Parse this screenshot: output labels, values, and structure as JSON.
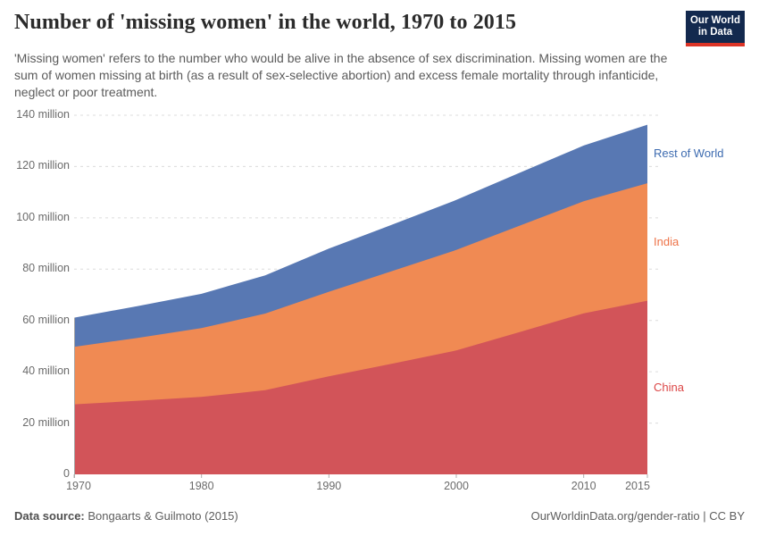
{
  "header": {
    "title": "Number of 'missing women' in the world, 1970 to 2015",
    "subtitle": "'Missing women' refers to the number who would be alive in the absence of sex discrimination. Missing women are the sum of women missing at birth (as a result of sex-selective abortion) and excess female mortality through infanticide, neglect or poor treatment.",
    "logo": {
      "line1": "Our World",
      "line2": "in Data",
      "bg_color": "#13294e",
      "bar_color": "#dc3426"
    }
  },
  "chart_data": {
    "type": "area",
    "stacked": true,
    "title": "Number of 'missing women' in the world, 1970 to 2015",
    "xlabel": "",
    "ylabel": "",
    "unit": "million",
    "grid": "dashed-horizontal",
    "legend_position": "labels-at-right-edge",
    "xlim": [
      1970,
      2015
    ],
    "ylim": [
      0,
      140
    ],
    "x": [
      1970,
      1975,
      1980,
      1985,
      1990,
      1995,
      2000,
      2005,
      2010,
      2015
    ],
    "series": [
      {
        "name": "China",
        "values": [
          27.3,
          28.7,
          30.2,
          32.8,
          38.2,
          43.2,
          48.3,
          55.5,
          62.8,
          67.7
        ],
        "fill": "#d25459",
        "label_color": "#dc4747"
      },
      {
        "name": "India",
        "values": [
          22.4,
          24.5,
          26.8,
          29.9,
          33.0,
          36.1,
          39.2,
          41.5,
          43.7,
          45.8
        ],
        "fill": "#f08a53",
        "label_color": "#ee7348"
      },
      {
        "name": "Rest of World",
        "values": [
          11.4,
          12.4,
          13.4,
          14.9,
          16.8,
          18.1,
          19.5,
          20.6,
          21.7,
          22.8
        ],
        "fill": "#5878b3",
        "label_color": "#3d6bb0"
      }
    ],
    "yticks": [
      {
        "value": 0,
        "label": "0"
      },
      {
        "value": 20,
        "label": "20 million"
      },
      {
        "value": 40,
        "label": "40 million"
      },
      {
        "value": 60,
        "label": "60 million"
      },
      {
        "value": 80,
        "label": "80 million"
      },
      {
        "value": 100,
        "label": "100 million"
      },
      {
        "value": 120,
        "label": "120 million"
      },
      {
        "value": 140,
        "label": "140 million"
      }
    ],
    "xticks": [
      1970,
      1980,
      1990,
      2000,
      2010,
      2015
    ],
    "gridline_color": "#dcdcdc",
    "axis_text_color": "#6b6b6b"
  },
  "footer": {
    "datasource_label": "Data source:",
    "datasource_value": " Bongaarts & Guilmoto (2015)",
    "attribution": "OurWorldinData.org/gender-ratio | CC BY"
  }
}
